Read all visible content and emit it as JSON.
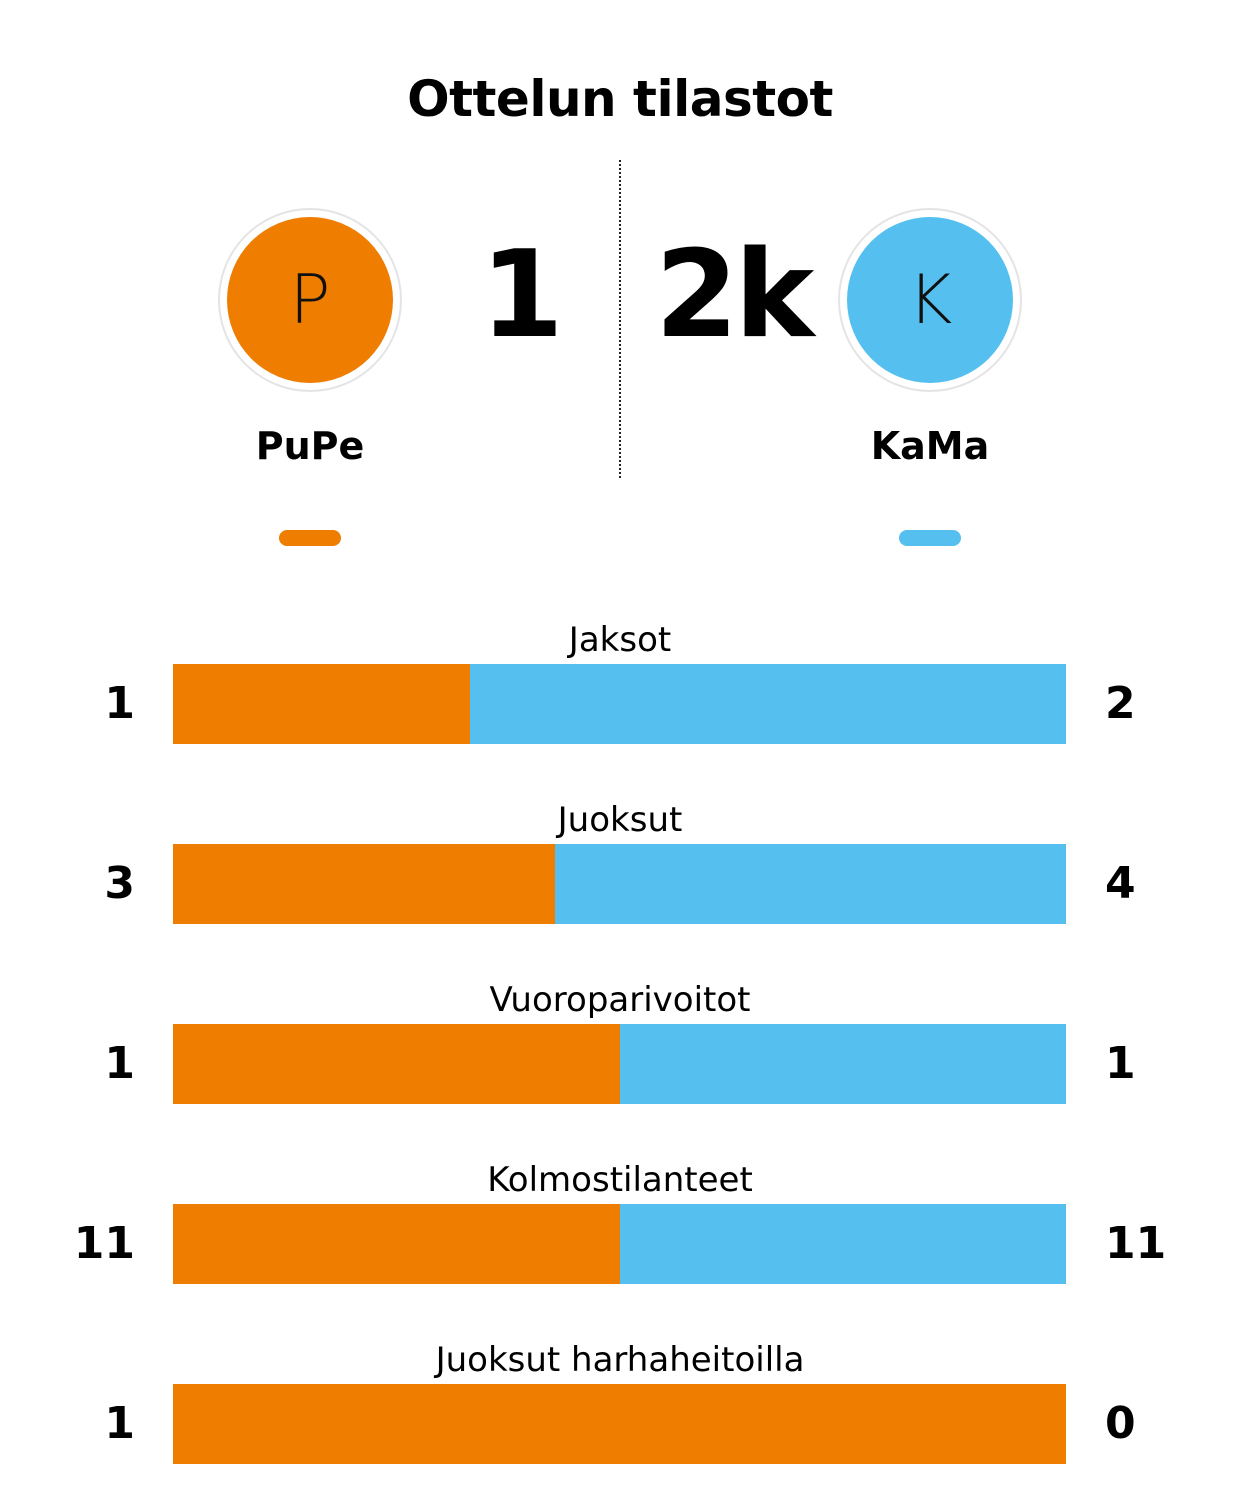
{
  "title": "Ottelun tilastot",
  "colors": {
    "home": "#ee7d00",
    "away": "#55c0ef"
  },
  "home": {
    "name": "PuPe",
    "logo_letter": "P",
    "score": "1"
  },
  "away": {
    "name": "KaMa",
    "logo_letter": "K",
    "score": "2k"
  },
  "stats": [
    {
      "label": "Jaksot",
      "home": "1",
      "away": "2",
      "home_share": 0.333
    },
    {
      "label": "Juoksut",
      "home": "3",
      "away": "4",
      "home_share": 0.428
    },
    {
      "label": "Vuoroparivoitot",
      "home": "1",
      "away": "1",
      "home_share": 0.5
    },
    {
      "label": "Kolmostilanteet",
      "home": "11",
      "away": "11",
      "home_share": 0.5
    },
    {
      "label": "Juoksut harhaheitoilla",
      "home": "1",
      "away": "0",
      "home_share": 1.0
    }
  ]
}
